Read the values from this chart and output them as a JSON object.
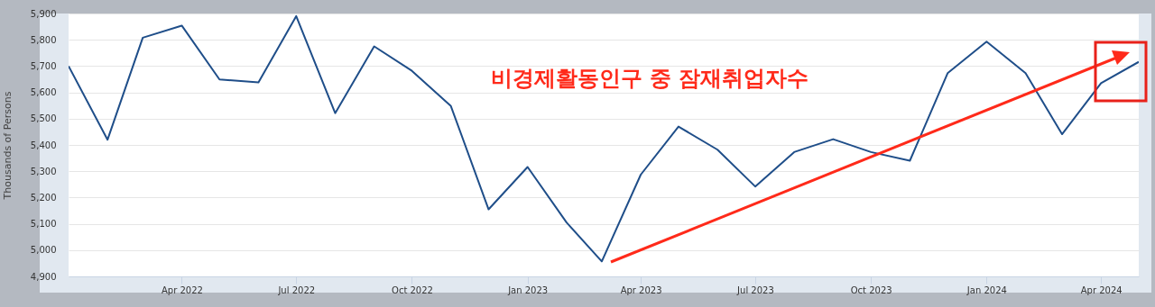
{
  "chart_data": {
    "type": "line",
    "ylabel": "Thousands of Persons",
    "annotations": [
      "비경제활동인구 중 잠재취업자수"
    ],
    "x": [
      "2022-01",
      "2022-02",
      "2022-03",
      "2022-04",
      "2022-05",
      "2022-06",
      "2022-07",
      "2022-08",
      "2022-09",
      "2022-10",
      "2022-11",
      "2022-12",
      "2023-01",
      "2023-02",
      "2023-03",
      "2023-04",
      "2023-05",
      "2023-06",
      "2023-07",
      "2023-08",
      "2023-09",
      "2023-10",
      "2023-11",
      "2023-12",
      "2024-01",
      "2024-02",
      "2024-03",
      "2024-04",
      "2024-05"
    ],
    "series": [
      {
        "color": "#1f4e89",
        "values": [
          5700,
          5420,
          5808,
          5854,
          5649,
          5638,
          5890,
          5521,
          5775,
          5682,
          5548,
          5155,
          5316,
          5105,
          4957,
          5287,
          5470,
          5382,
          5242,
          5373,
          5422,
          5373,
          5340,
          5673,
          5793,
          5673,
          5441,
          5635,
          5716
        ]
      }
    ],
    "xlim": [
      "2022-01",
      "2024-05"
    ],
    "xticks": [
      {
        "value": "2022-04",
        "label": "Apr 2022"
      },
      {
        "value": "2022-07",
        "label": "Jul 2022"
      },
      {
        "value": "2022-10",
        "label": "Oct 2022"
      },
      {
        "value": "2023-01",
        "label": "Jan 2023"
      },
      {
        "value": "2023-04",
        "label": "Apr 2023"
      },
      {
        "value": "2023-07",
        "label": "Jul 2023"
      },
      {
        "value": "2023-10",
        "label": "Oct 2023"
      },
      {
        "value": "2024-01",
        "label": "Jan 2024"
      },
      {
        "value": "2024-04",
        "label": "Apr 2024"
      }
    ],
    "ylim": [
      4900,
      5900
    ],
    "yticks": [
      {
        "value": 4900,
        "label": "4,900"
      },
      {
        "value": 5000,
        "label": "5,000"
      },
      {
        "value": 5100,
        "label": "5,100"
      },
      {
        "value": 5200,
        "label": "5,200"
      },
      {
        "value": 5300,
        "label": "5,300"
      },
      {
        "value": 5400,
        "label": "5,400"
      },
      {
        "value": 5500,
        "label": "5,500"
      },
      {
        "value": 5600,
        "label": "5,600"
      },
      {
        "value": 5700,
        "label": "5,700"
      },
      {
        "value": 5800,
        "label": "5,800"
      },
      {
        "value": 5900,
        "label": "5,900"
      }
    ],
    "grid": "y",
    "marker": "none",
    "line_style": "solid"
  }
}
